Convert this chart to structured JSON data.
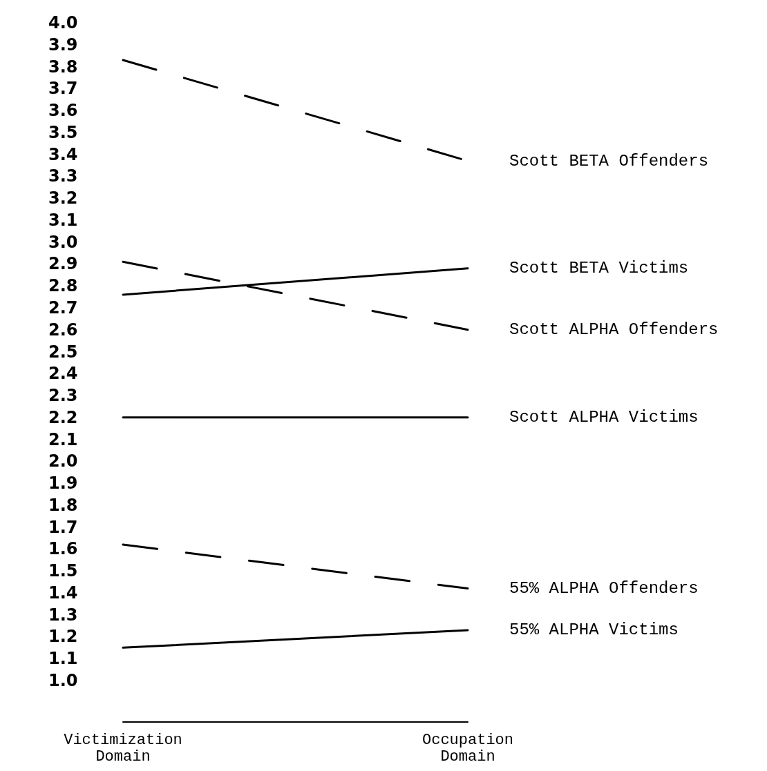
{
  "chart_data": {
    "type": "line",
    "categories": [
      "Victimization\nDomain",
      "Occupation\nDomain"
    ],
    "ylim": [
      1.0,
      4.0
    ],
    "yticks": [
      {
        "value": 1.0,
        "label": "1.0"
      },
      {
        "value": 1.1,
        "label": "1.1"
      },
      {
        "value": 1.2,
        "label": "1.2"
      },
      {
        "value": 1.3,
        "label": "1.3"
      },
      {
        "value": 1.4,
        "label": "1.4"
      },
      {
        "value": 1.5,
        "label": "1.5"
      },
      {
        "value": 1.6,
        "label": "1.6"
      },
      {
        "value": 1.7,
        "label": "1.7"
      },
      {
        "value": 1.8,
        "label": "1.8"
      },
      {
        "value": 1.9,
        "label": "1.9"
      },
      {
        "value": 2.0,
        "label": "2.0"
      },
      {
        "value": 2.1,
        "label": "2.1"
      },
      {
        "value": 2.2,
        "label": "2.2"
      },
      {
        "value": 2.3,
        "label": "2.3"
      },
      {
        "value": 2.4,
        "label": "2.4"
      },
      {
        "value": 2.5,
        "label": "2.5"
      },
      {
        "value": 2.6,
        "label": "2.6"
      },
      {
        "value": 2.7,
        "label": "2.7"
      },
      {
        "value": 2.8,
        "label": "2.8"
      },
      {
        "value": 2.9,
        "label": "2.9"
      },
      {
        "value": 3.0,
        "label": "3.0"
      },
      {
        "value": 3.1,
        "label": "3.1"
      },
      {
        "value": 3.2,
        "label": "3.2"
      },
      {
        "value": 3.3,
        "label": "3.3"
      },
      {
        "value": 3.4,
        "label": "3.4"
      },
      {
        "value": 3.5,
        "label": "3.5"
      },
      {
        "value": 3.6,
        "label": "3.6"
      },
      {
        "value": 3.7,
        "label": "3.7"
      },
      {
        "value": 3.8,
        "label": "3.8"
      },
      {
        "value": 3.9,
        "label": "3.9"
      },
      {
        "value": 4.0,
        "label": "4.0"
      }
    ],
    "grid": false,
    "legend": false,
    "marker": "none",
    "series": [
      {
        "name": "Scott BETA Offenders",
        "color": "#000000",
        "line_style": "dashed",
        "values": [
          3.83,
          3.37
        ]
      },
      {
        "name": "Scott BETA Victims",
        "color": "#000000",
        "line_style": "solid",
        "values": [
          2.76,
          2.88
        ]
      },
      {
        "name": "Scott ALPHA Offenders",
        "color": "#000000",
        "line_style": "dashed",
        "values": [
          2.91,
          2.6
        ]
      },
      {
        "name": "Scott ALPHA Victims",
        "color": "#000000",
        "line_style": "solid",
        "values": [
          2.2,
          2.2
        ]
      },
      {
        "name": "55% ALPHA Offenders",
        "color": "#000000",
        "line_style": "dashed",
        "values": [
          1.62,
          1.42
        ]
      },
      {
        "name": "55% ALPHA Victims",
        "color": "#000000",
        "line_style": "solid",
        "values": [
          1.15,
          1.23
        ]
      }
    ]
  }
}
